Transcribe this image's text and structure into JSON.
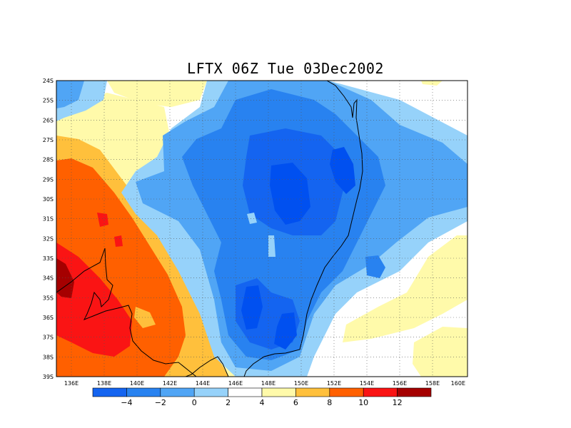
{
  "title": "LFTX 06Z Tue 03Dec2002",
  "map": {
    "lon_labels": [
      "136E",
      "138E",
      "140E",
      "142E",
      "144E",
      "146E",
      "148E",
      "150E",
      "152E",
      "154E",
      "156E",
      "158E",
      "160E"
    ],
    "lat_labels": [
      "24S",
      "25S",
      "26S",
      "27S",
      "28S",
      "29S",
      "30S",
      "31S",
      "32S",
      "33S",
      "34S",
      "35S",
      "36S",
      "37S",
      "38S",
      "39S"
    ],
    "lon_range": [
      135,
      160
    ],
    "lat_range": [
      -24,
      -39
    ],
    "grid": "dotted"
  },
  "colorbar": {
    "colors": [
      "#1464f0",
      "#2882f0",
      "#50a5f5",
      "#96d2fa",
      "#ffffff",
      "#fffaaa",
      "#ffc03c",
      "#ff6000",
      "#fa1414",
      "#a50000"
    ],
    "labels": [
      "−4",
      "−2",
      "0",
      "2",
      "4",
      "6",
      "8",
      "10",
      "12"
    ]
  },
  "field_colors": {
    "n5": "#0050f0",
    "n4": "#1464f0",
    "n3": "#2882f0",
    "n2": "#50a5f5",
    "n1": "#96d2fa",
    "n0": "#c8e6ff",
    "p1": "#fffaaa",
    "p2": "#ffc03c",
    "p3": "#ff6000",
    "p4": "#fa1414",
    "p5": "#a50000"
  }
}
